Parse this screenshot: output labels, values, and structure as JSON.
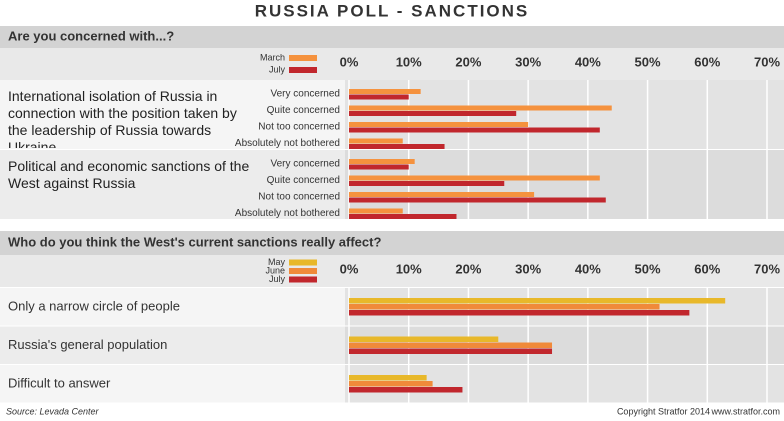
{
  "title": "RUSSIA POLL - SANCTIONS",
  "source": "Source: Levada Center",
  "copyright": "Copyright Stratfor 2014",
  "website": "www.stratfor.com",
  "chart_data": [
    {
      "type": "bar",
      "orientation": "horizontal",
      "title": "Are you concerned with...?",
      "groups": [
        "International isolation of Russia in connection with the position taken by the leadership of Russia towards Ukraine",
        "Political and economic sanctions of the West against Russia"
      ],
      "categories": [
        "Very concerned",
        "Quite concerned",
        "Not too concerned",
        "Absolutely not bothered"
      ],
      "series": [
        {
          "name": "March",
          "color": "#f5923e",
          "values": [
            [
              12,
              44,
              30,
              9
            ],
            [
              11,
              42,
              31,
              9
            ]
          ]
        },
        {
          "name": "July",
          "color": "#c1272d",
          "values": [
            [
              10,
              28,
              42,
              16
            ],
            [
              10,
              26,
              43,
              18
            ]
          ]
        }
      ],
      "xlim": [
        0,
        70
      ],
      "xticks": [
        {
          "value": 0,
          "label": "0%"
        },
        {
          "value": 10,
          "label": "10%"
        },
        {
          "value": 20,
          "label": "20%"
        },
        {
          "value": 30,
          "label": "30%"
        },
        {
          "value": 40,
          "label": "40%"
        },
        {
          "value": 50,
          "label": "50%"
        },
        {
          "value": 60,
          "label": "60%"
        },
        {
          "value": 70,
          "label": "70%"
        }
      ],
      "grid": true
    },
    {
      "type": "bar",
      "orientation": "horizontal",
      "title": "Who do you think the West's current sanctions really affect?",
      "categories": [
        "Only a narrow circle of people",
        "Russia's general population",
        "Difficult to answer"
      ],
      "series": [
        {
          "name": "May",
          "color": "#e8b82a",
          "values": [
            63,
            25,
            13
          ]
        },
        {
          "name": "June",
          "color": "#f08a3a",
          "values": [
            52,
            34,
            14
          ]
        },
        {
          "name": "July",
          "color": "#c1272d",
          "values": [
            57,
            34,
            19
          ]
        }
      ],
      "xlim": [
        0,
        70
      ],
      "xticks": [
        {
          "value": 0,
          "label": "0%"
        },
        {
          "value": 10,
          "label": "10%"
        },
        {
          "value": 20,
          "label": "20%"
        },
        {
          "value": 30,
          "label": "30%"
        },
        {
          "value": 40,
          "label": "40%"
        },
        {
          "value": 50,
          "label": "50%"
        },
        {
          "value": 60,
          "label": "60%"
        },
        {
          "value": 70,
          "label": "70%"
        }
      ],
      "grid": true
    }
  ]
}
